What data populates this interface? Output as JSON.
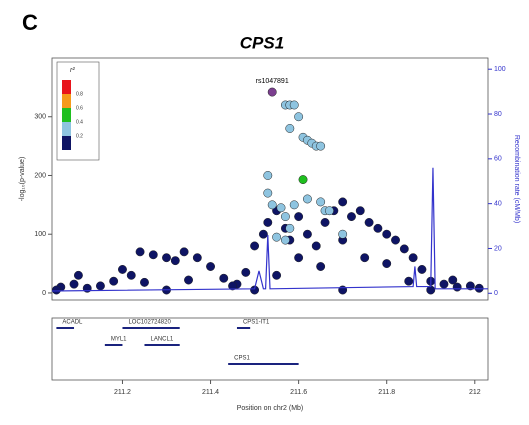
{
  "panel_label": "C",
  "chart_data": {
    "type": "scatter",
    "title": "CPS1",
    "xlabel": "Position on chr2 (Mb)",
    "ylabel": "-log₁₀(p-value)",
    "y2label": "Recombination rate (cM/Mb)",
    "xlim": [
      211.04,
      212.03
    ],
    "xticks": [
      211.2,
      211.4,
      211.6,
      211.8,
      212
    ],
    "ylim": [
      -12,
      400
    ],
    "yticks": [
      0,
      100,
      200,
      300
    ],
    "y2lim": [
      -3,
      105
    ],
    "y2ticks": [
      0,
      20,
      40,
      60,
      80,
      100
    ],
    "grid": false,
    "legend": {
      "title": "r²",
      "colors": [
        "#e8141b",
        "#f59a1b",
        "#1fbf1f",
        "#8ec4e0",
        "#0e1464"
      ],
      "labels": [
        "0.8",
        "0.6",
        "0.4",
        "0.2"
      ]
    },
    "series": [
      {
        "color": "#0e1464",
        "x": [
          211.06,
          211.09,
          211.12,
          211.15,
          211.18,
          211.2,
          211.22,
          211.24,
          211.27,
          211.3,
          211.32,
          211.34,
          211.37,
          211.4,
          211.43,
          211.46,
          211.48,
          211.5,
          211.52,
          211.53,
          211.55,
          211.57,
          211.58,
          211.6,
          211.62,
          211.64,
          211.66,
          211.68,
          211.7,
          211.72,
          211.74,
          211.76,
          211.78,
          211.8,
          211.82,
          211.84,
          211.86,
          211.88,
          211.9,
          211.93,
          211.96,
          211.99,
          212.01,
          211.1,
          211.25,
          211.35,
          211.45,
          211.55,
          211.65,
          211.75,
          211.85,
          211.95,
          211.05,
          211.3,
          211.5,
          211.7,
          211.9,
          211.6,
          211.7,
          211.8
        ],
        "values": [
          10,
          15,
          8,
          12,
          20,
          40,
          30,
          70,
          65,
          60,
          55,
          70,
          60,
          45,
          25,
          15,
          35,
          80,
          100,
          120,
          140,
          110,
          90,
          130,
          100,
          80,
          120,
          140,
          155,
          130,
          140,
          120,
          110,
          100,
          90,
          75,
          60,
          40,
          20,
          15,
          10,
          12,
          8,
          30,
          18,
          22,
          12,
          30,
          45,
          60,
          20,
          22,
          5,
          5,
          5,
          5,
          5,
          60,
          90,
          50
        ]
      },
      {
        "color": "#8ec4e0",
        "x": [
          211.57,
          211.58,
          211.59,
          211.6,
          211.61,
          211.62,
          211.63,
          211.64,
          211.65,
          211.58,
          211.53,
          211.53,
          211.54,
          211.56,
          211.57,
          211.58,
          211.59,
          211.55,
          211.65,
          211.66,
          211.67,
          211.7,
          211.62,
          211.57
        ],
        "values": [
          320,
          320,
          320,
          300,
          265,
          260,
          255,
          250,
          250,
          280,
          200,
          170,
          150,
          145,
          130,
          110,
          150,
          95,
          155,
          140,
          140,
          100,
          160,
          90
        ]
      },
      {
        "color": "#1fbf1f",
        "x": [
          211.61
        ],
        "values": [
          193
        ]
      },
      {
        "color": "#7b3f8f",
        "label": "rs1047891",
        "x": [
          211.54
        ],
        "values": [
          342
        ]
      },
      {
        "axis": "y2",
        "color": "#3333cc",
        "x": [
          211.04,
          211.5,
          211.51,
          211.52,
          211.525,
          211.53,
          211.535,
          211.86,
          211.864,
          211.868,
          211.9,
          211.905,
          211.91,
          212.03
        ],
        "values": [
          1,
          2,
          10,
          2,
          2,
          26,
          2,
          3,
          12,
          3,
          3,
          56,
          2,
          2
        ]
      }
    ],
    "genes": [
      {
        "name": "ACADL",
        "start": 211.05,
        "end": 211.09,
        "row": 0
      },
      {
        "name": "LOC102724820",
        "start": 211.2,
        "end": 211.33,
        "row": 0
      },
      {
        "name": "CPS1-IT1",
        "start": 211.46,
        "end": 211.49,
        "row": 0
      },
      {
        "name": "MYL1",
        "start": 211.16,
        "end": 211.2,
        "row": 1
      },
      {
        "name": "LANCL1",
        "start": 211.25,
        "end": 211.33,
        "row": 1
      },
      {
        "name": "CPS1",
        "start": 211.44,
        "end": 211.6,
        "row": 2
      }
    ]
  }
}
